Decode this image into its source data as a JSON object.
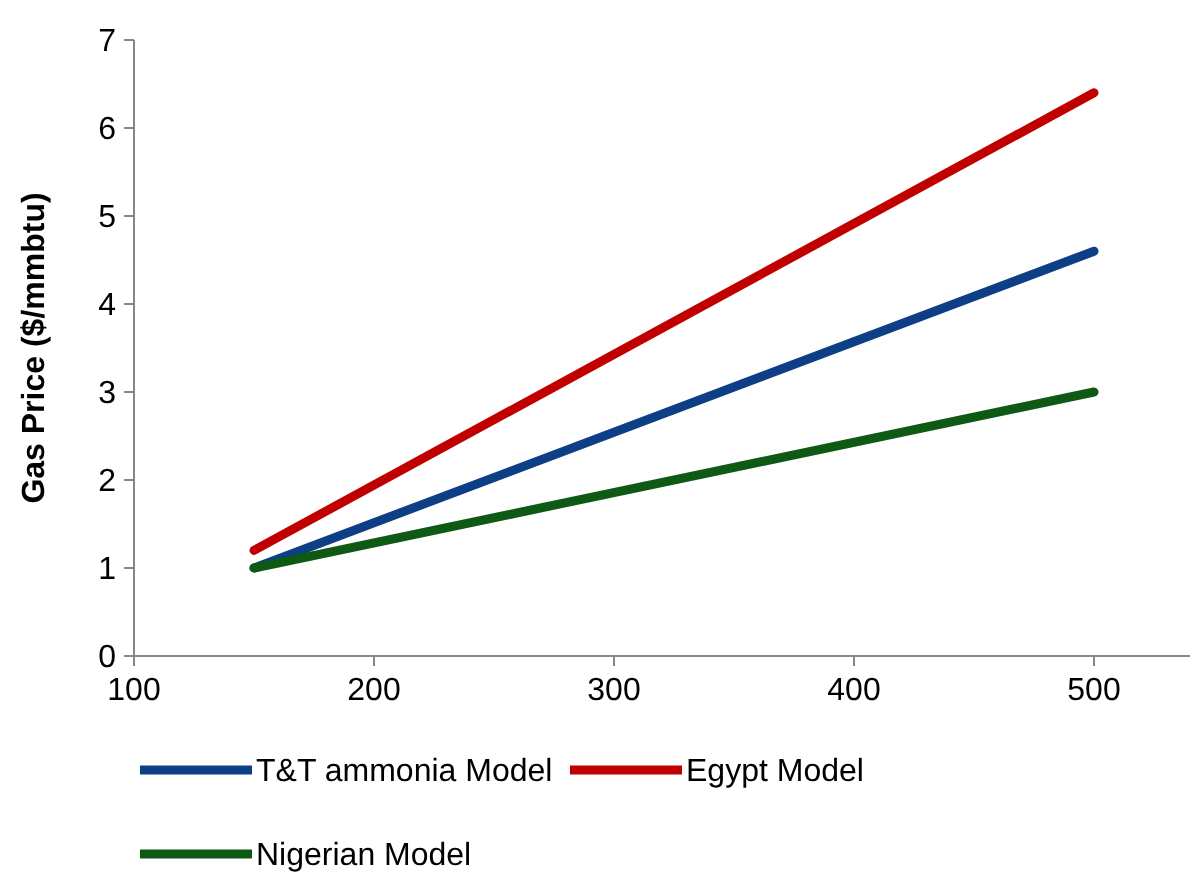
{
  "chart_data": {
    "type": "line",
    "ylabel": "Gas Price ($/mmbtu)",
    "x": [
      150,
      500
    ],
    "series": [
      {
        "name": "T&T ammonia Model",
        "color": "#0e3f86",
        "values": [
          1,
          4.6
        ]
      },
      {
        "name": "Egypt Model",
        "color": "#c00000",
        "values": [
          1.2,
          6.4
        ]
      },
      {
        "name": "Nigerian Model",
        "color": "#0e5a14",
        "values": [
          1,
          3
        ]
      }
    ],
    "xlim": [
      100,
      540
    ],
    "xticks": [
      100,
      200,
      300,
      400,
      500
    ],
    "ylim": [
      0,
      7
    ],
    "yticks": [
      0,
      1,
      2,
      3,
      4,
      5,
      6,
      7
    ],
    "grid": false,
    "legend": "bottom",
    "marker": "none",
    "line_style": "solid"
  }
}
